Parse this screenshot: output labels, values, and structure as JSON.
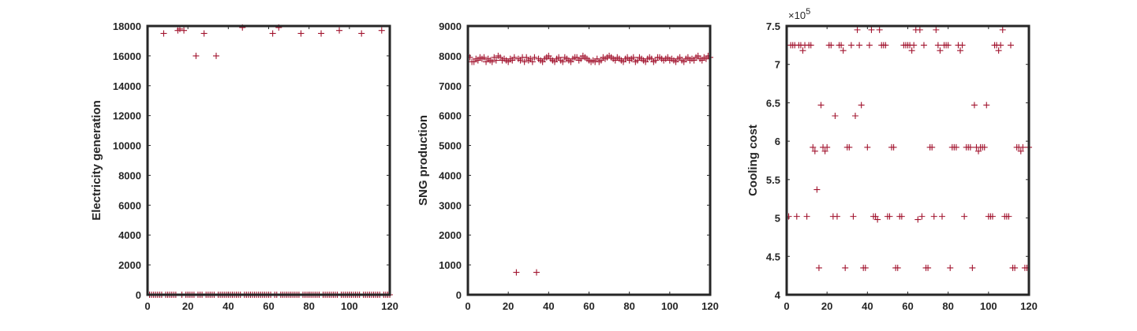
{
  "chart_data": [
    {
      "type": "scatter",
      "marker": "+",
      "color": "#a2142f",
      "xlabel": "",
      "ylabel": "Electricity generation",
      "xlim": [
        0,
        120
      ],
      "ylim": [
        0,
        18000
      ],
      "xticks": [
        "0",
        "20",
        "40",
        "60",
        "80",
        "100",
        "120"
      ],
      "yticks": [
        "0",
        "2000",
        "4000",
        "6000",
        "8000",
        "10000",
        "12000",
        "14000",
        "16000",
        "18000"
      ],
      "exponent": "",
      "grid": false,
      "x": [
        1,
        2,
        3,
        4,
        5,
        6,
        7,
        8,
        9,
        10,
        11,
        12,
        13,
        14,
        15,
        16,
        17,
        18,
        19,
        20,
        21,
        22,
        23,
        24,
        25,
        26,
        27,
        28,
        29,
        30,
        31,
        32,
        33,
        34,
        35,
        36,
        37,
        38,
        39,
        40,
        41,
        42,
        43,
        44,
        45,
        46,
        47,
        48,
        49,
        50,
        51,
        52,
        53,
        54,
        55,
        56,
        57,
        58,
        59,
        60,
        61,
        62,
        63,
        64,
        65,
        66,
        67,
        68,
        69,
        70,
        71,
        72,
        73,
        74,
        75,
        76,
        77,
        78,
        79,
        80,
        81,
        82,
        83,
        84,
        85,
        86,
        87,
        88,
        89,
        90,
        91,
        92,
        93,
        94,
        95,
        96,
        97,
        98,
        99,
        100,
        101,
        102,
        103,
        104,
        105,
        106,
        107,
        108,
        109,
        110,
        111,
        112,
        113,
        114,
        115,
        116,
        117,
        118,
        119,
        120
      ],
      "y": [
        0,
        0,
        0,
        0,
        0,
        0,
        0,
        17500,
        0,
        0,
        0,
        0,
        0,
        0,
        17700,
        17800,
        0,
        17700,
        0,
        0,
        0,
        0,
        0,
        16000,
        0,
        0,
        0,
        17500,
        0,
        0,
        0,
        0,
        0,
        16000,
        0,
        0,
        0,
        0,
        0,
        0,
        0,
        0,
        0,
        0,
        0,
        0,
        17900,
        0,
        0,
        0,
        0,
        0,
        0,
        0,
        0,
        0,
        0,
        0,
        0,
        0,
        0,
        17500,
        0,
        0,
        17900,
        0,
        0,
        0,
        0,
        0,
        0,
        0,
        0,
        0,
        0,
        17500,
        0,
        0,
        0,
        0,
        0,
        0,
        0,
        0,
        0,
        17500,
        0,
        0,
        0,
        0,
        0,
        0,
        0,
        0,
        17700,
        0,
        0,
        0,
        0,
        0,
        0,
        0,
        0,
        0,
        0,
        17500,
        0,
        0,
        0,
        0,
        0,
        0,
        0,
        0,
        0,
        17700,
        0,
        0,
        0,
        0
      ]
    },
    {
      "type": "scatter",
      "marker": "+",
      "color": "#a2142f",
      "xlabel": "",
      "ylabel": "SNG production",
      "xlim": [
        0,
        120
      ],
      "ylim": [
        0,
        9000
      ],
      "xticks": [
        "0",
        "20",
        "40",
        "60",
        "80",
        "100",
        "120"
      ],
      "yticks": [
        "0",
        "1000",
        "2000",
        "3000",
        "4000",
        "5000",
        "6000",
        "7000",
        "8000",
        "9000"
      ],
      "exponent": "",
      "grid": false,
      "x": [
        1,
        2,
        3,
        4,
        5,
        6,
        7,
        8,
        9,
        10,
        11,
        12,
        13,
        14,
        15,
        16,
        17,
        18,
        19,
        20,
        21,
        22,
        23,
        24,
        25,
        26,
        27,
        28,
        29,
        30,
        31,
        32,
        33,
        34,
        35,
        36,
        37,
        38,
        39,
        40,
        41,
        42,
        43,
        44,
        45,
        46,
        47,
        48,
        49,
        50,
        51,
        52,
        53,
        54,
        55,
        56,
        57,
        58,
        59,
        60,
        61,
        62,
        63,
        64,
        65,
        66,
        67,
        68,
        69,
        70,
        71,
        72,
        73,
        74,
        75,
        76,
        77,
        78,
        79,
        80,
        81,
        82,
        83,
        84,
        85,
        86,
        87,
        88,
        89,
        90,
        91,
        92,
        93,
        94,
        95,
        96,
        97,
        98,
        99,
        100,
        101,
        102,
        103,
        104,
        105,
        106,
        107,
        108,
        109,
        110,
        111,
        112,
        113,
        114,
        115,
        116,
        117,
        118,
        119,
        120
      ],
      "y": [
        7950,
        7800,
        7800,
        7900,
        7850,
        7950,
        7900,
        7950,
        7800,
        7900,
        7850,
        7800,
        7950,
        7850,
        8000,
        7950,
        7850,
        7900,
        7850,
        7800,
        7900,
        7850,
        7950,
        750,
        7900,
        7850,
        7950,
        7800,
        7950,
        7850,
        7900,
        7800,
        7950,
        750,
        7900,
        7850,
        7800,
        7900,
        7950,
        8000,
        7900,
        7850,
        7800,
        7900,
        7950,
        7850,
        7800,
        7950,
        7900,
        7850,
        7800,
        7900,
        7950,
        7950,
        7850,
        7900,
        8000,
        7950,
        7900,
        7850,
        7800,
        7850,
        7800,
        7900,
        7800,
        7850,
        7950,
        7900,
        7950,
        8000,
        7950,
        7900,
        7850,
        7950,
        7900,
        7850,
        7800,
        7900,
        7950,
        7850,
        7900,
        7950,
        7800,
        7850,
        7950,
        7900,
        7850,
        7800,
        7900,
        7950,
        7900,
        7800,
        7850,
        7950,
        7950,
        7900,
        7850,
        7900,
        7950,
        7850,
        7900,
        7850,
        7800,
        7900,
        7950,
        7850,
        7800,
        7900,
        7950,
        7850,
        7900,
        7850,
        7950,
        8000,
        7900,
        7850,
        7950,
        7900,
        8000,
        7950
      ]
    },
    {
      "type": "scatter",
      "marker": "+",
      "color": "#a2142f",
      "xlabel": "",
      "ylabel": "Cooling cost",
      "xlim": [
        0,
        120
      ],
      "ylim": [
        4.0,
        7.5
      ],
      "xticks": [
        "0",
        "20",
        "40",
        "60",
        "80",
        "100",
        "120"
      ],
      "yticks": [
        "4",
        "4.5",
        "5",
        "5.5",
        "6",
        "6.5",
        "7",
        "7.5"
      ],
      "exponent": "×10",
      "exponent_power": "5",
      "grid": false,
      "x": [
        1,
        2,
        3,
        4,
        5,
        6,
        7,
        8,
        9,
        10,
        11,
        12,
        13,
        14,
        15,
        16,
        17,
        18,
        19,
        20,
        21,
        22,
        23,
        24,
        25,
        26,
        27,
        28,
        29,
        30,
        31,
        32,
        33,
        34,
        35,
        36,
        37,
        38,
        39,
        40,
        41,
        42,
        43,
        44,
        45,
        46,
        47,
        48,
        49,
        50,
        51,
        52,
        53,
        54,
        55,
        56,
        57,
        58,
        59,
        60,
        61,
        62,
        63,
        64,
        65,
        66,
        67,
        68,
        69,
        70,
        71,
        72,
        73,
        74,
        75,
        76,
        77,
        78,
        79,
        80,
        81,
        82,
        83,
        84,
        85,
        86,
        87,
        88,
        89,
        90,
        91,
        92,
        93,
        94,
        95,
        96,
        97,
        98,
        99,
        100,
        101,
        102,
        103,
        104,
        105,
        106,
        107,
        108,
        109,
        110,
        111,
        112,
        113,
        114,
        115,
        116,
        117,
        118,
        119,
        120
      ],
      "y": [
        5.02,
        7.25,
        7.25,
        7.25,
        5.02,
        7.25,
        7.25,
        7.18,
        7.25,
        5.02,
        7.25,
        7.25,
        5.92,
        5.87,
        5.37,
        4.35,
        6.47,
        5.92,
        5.87,
        5.92,
        7.25,
        7.25,
        5.02,
        6.33,
        5.02,
        7.25,
        7.25,
        7.18,
        4.35,
        5.92,
        5.92,
        7.25,
        5.02,
        6.33,
        7.45,
        7.25,
        6.47,
        4.35,
        4.35,
        5.92,
        7.25,
        7.45,
        5.02,
        5.02,
        4.98,
        7.45,
        7.25,
        7.25,
        7.25,
        5.02,
        5.02,
        5.92,
        5.92,
        4.35,
        4.35,
        5.02,
        5.02,
        7.25,
        7.25,
        7.25,
        7.25,
        7.18,
        7.25,
        7.45,
        4.98,
        7.45,
        5.02,
        7.25,
        4.35,
        4.35,
        5.92,
        5.92,
        5.02,
        7.45,
        7.25,
        7.18,
        5.02,
        7.25,
        7.25,
        7.25,
        4.35,
        5.92,
        5.92,
        5.92,
        7.25,
        7.18,
        7.25,
        5.02,
        5.92,
        5.92,
        5.92,
        4.35,
        6.47,
        5.92,
        5.87,
        5.92,
        5.92,
        5.92,
        6.47,
        5.02,
        5.02,
        5.02,
        7.25,
        7.25,
        7.18,
        7.25,
        7.45,
        5.02,
        5.02,
        5.02,
        7.25,
        4.35,
        4.35,
        5.92,
        5.92,
        5.87,
        5.92,
        4.35,
        4.35,
        5.92
      ]
    }
  ]
}
